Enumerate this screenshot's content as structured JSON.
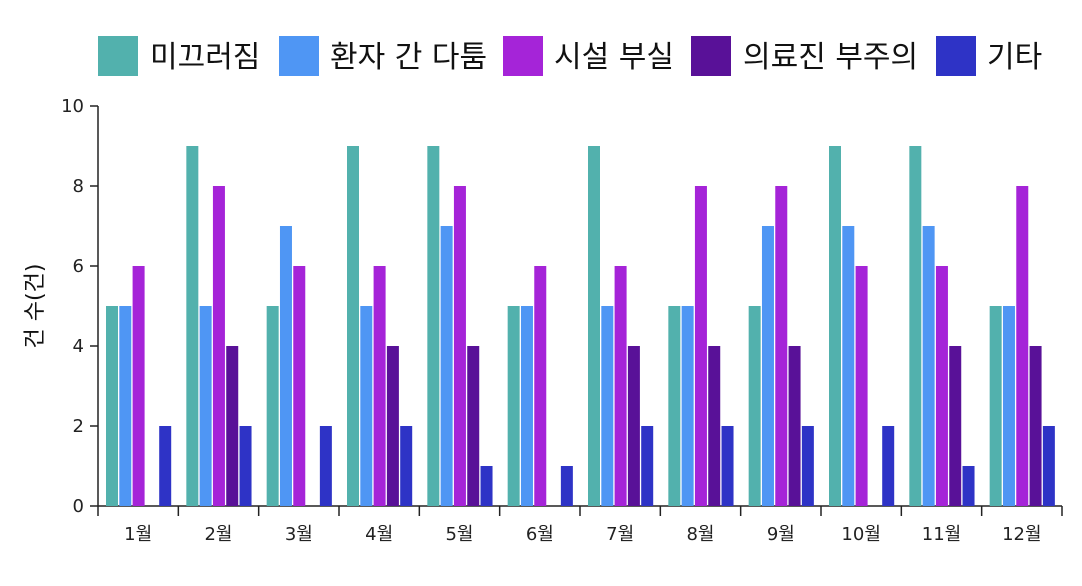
{
  "chart_data": {
    "type": "bar",
    "title": "",
    "xlabel": "",
    "ylabel": "건 수(건)",
    "ylim": [
      0,
      10
    ],
    "yticks": [
      0,
      2,
      4,
      6,
      8,
      10
    ],
    "legend_position": "top",
    "grid": false,
    "categories": [
      "1월",
      "2월",
      "3월",
      "4월",
      "5월",
      "6월",
      "7월",
      "8월",
      "9월",
      "10월",
      "11월",
      "12월"
    ],
    "series": [
      {
        "name": "미끄러짐",
        "color": "#52b1ad",
        "values": [
          5,
          9,
          5,
          9,
          9,
          5,
          9,
          5,
          5,
          9,
          9,
          5
        ]
      },
      {
        "name": "환자 간 다툼",
        "color": "#4f96f4",
        "values": [
          5,
          5,
          7,
          5,
          7,
          5,
          5,
          5,
          7,
          7,
          7,
          5
        ]
      },
      {
        "name": "시설 부실",
        "color": "#a524d8",
        "values": [
          6,
          8,
          6,
          6,
          8,
          6,
          6,
          8,
          8,
          6,
          6,
          8
        ]
      },
      {
        "name": "의료진 부주의",
        "color": "#591198",
        "values": [
          0,
          4,
          0,
          4,
          4,
          0,
          4,
          4,
          4,
          0,
          4,
          4
        ]
      },
      {
        "name": "기타",
        "color": "#2e33c6",
        "values": [
          2,
          2,
          2,
          2,
          1,
          1,
          2,
          2,
          2,
          2,
          1,
          2
        ]
      }
    ]
  }
}
